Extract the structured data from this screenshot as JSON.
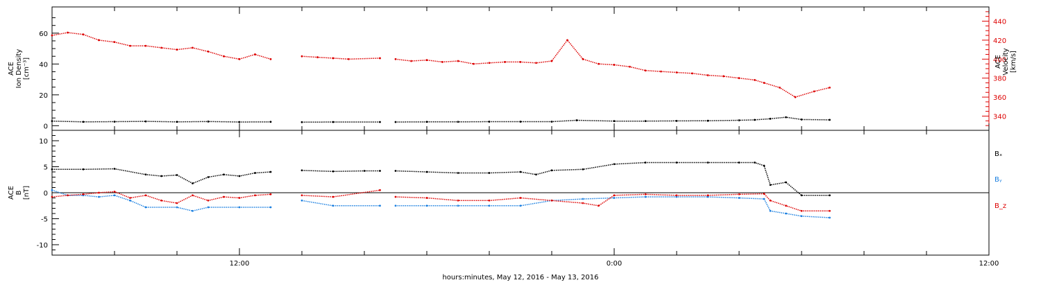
{
  "chart_data": [
    {
      "type": "scatter",
      "panel": "top",
      "ylabel_left": [
        "ACE",
        "Ion Density",
        "[cm⁻³]"
      ],
      "ylabel_right": [
        "ACE",
        "Velocity",
        "[km/s]"
      ],
      "left_axis": {
        "ylim": [
          -3,
          77
        ],
        "ticks": [
          0,
          20,
          40,
          60
        ]
      },
      "right_axis": {
        "ylim": [
          325,
          455
        ],
        "ticks": [
          340,
          360,
          380,
          400,
          420,
          440
        ]
      },
      "series": [
        {
          "label": "Velocity",
          "axis": "right",
          "color": "#dd0000",
          "segments": [
            {
              "x": [
                6.0,
                6.5,
                7.0,
                7.5,
                8.0,
                8.5,
                9.0,
                9.5,
                10.0,
                10.5,
                11.0,
                11.5,
                12.0,
                12.5,
                13.0
              ],
              "y": [
                425,
                428,
                426,
                420,
                418,
                414,
                414,
                412,
                410,
                412,
                408,
                403,
                400,
                405,
                400
              ]
            },
            {
              "x": [
                14.0,
                14.5,
                15.0,
                15.5,
                16.5
              ],
              "y": [
                403,
                402,
                401,
                400,
                401
              ]
            },
            {
              "x": [
                17.0,
                17.5,
                18.0,
                18.5,
                19.0,
                19.5,
                20.0,
                20.5,
                21.0,
                21.5,
                22.0,
                22.5,
                23.0,
                23.5,
                24.0,
                24.5,
                25.0,
                25.5,
                26.0,
                26.5,
                27.0,
                27.5,
                28.0,
                28.5,
                28.8,
                29.3,
                29.8,
                30.4,
                30.9
              ],
              "y": [
                400,
                398,
                399,
                397,
                398,
                395,
                396,
                397,
                397,
                396,
                398,
                420,
                400,
                395,
                394,
                392,
                388,
                387,
                386,
                385,
                383,
                382,
                380,
                378,
                375,
                370,
                360,
                366,
                370
              ]
            }
          ]
        },
        {
          "label": "Ion Density",
          "axis": "left",
          "color": "#000000",
          "segments": [
            {
              "x": [
                6.0,
                7.0,
                8.0,
                9.0,
                10.0,
                11.0,
                12.0,
                13.0
              ],
              "y": [
                3.0,
                2.5,
                2.6,
                2.8,
                2.5,
                2.7,
                2.4,
                2.5
              ]
            },
            {
              "x": [
                14.0,
                15.0,
                16.5
              ],
              "y": [
                2.3,
                2.4,
                2.4
              ]
            },
            {
              "x": [
                17.0,
                18.0,
                19.0,
                20.0,
                21.0,
                22.0,
                22.8,
                24.0,
                25.0,
                26.0,
                27.0,
                28.0,
                28.5,
                29.0,
                29.5,
                30.0,
                30.9
              ],
              "y": [
                2.4,
                2.5,
                2.5,
                2.6,
                2.6,
                2.6,
                3.5,
                3.0,
                3.0,
                3.1,
                3.2,
                3.5,
                3.8,
                4.5,
                5.5,
                4.0,
                3.8
              ]
            }
          ]
        }
      ]
    },
    {
      "type": "line",
      "panel": "bottom",
      "ylabel_left": [
        "ACE",
        "B",
        "[nT]"
      ],
      "ylim": [
        -12,
        12
      ],
      "y_ticks": [
        -10,
        -5,
        0,
        5,
        10
      ],
      "series": [
        {
          "label": "Bₓ",
          "color": "#000000",
          "segments": [
            {
              "x": [
                6.0,
                7.0,
                8.0,
                9.0,
                9.5,
                10.0,
                10.5,
                11.0,
                11.5,
                12.0,
                12.5,
                13.0
              ],
              "y": [
                4.5,
                4.5,
                4.6,
                3.5,
                3.2,
                3.4,
                1.8,
                3.0,
                3.5,
                3.2,
                3.8,
                4.0
              ]
            },
            {
              "x": [
                14.0,
                15.0,
                16.0,
                16.5
              ],
              "y": [
                4.3,
                4.1,
                4.2,
                4.2
              ]
            },
            {
              "x": [
                17.0,
                18.0,
                19.0,
                20.0,
                21.0,
                21.5,
                22.0,
                23.0,
                24.0,
                25.0,
                26.0,
                27.0,
                28.0,
                28.5,
                28.8,
                29.0,
                29.5,
                30.0,
                30.9
              ],
              "y": [
                4.2,
                4.0,
                3.8,
                3.8,
                4.0,
                3.5,
                4.3,
                4.5,
                5.5,
                5.8,
                5.8,
                5.8,
                5.8,
                5.8,
                5.2,
                1.5,
                2.0,
                -0.5,
                -0.5
              ]
            }
          ]
        },
        {
          "label": "Bᵧ",
          "color": "#1a7fe0",
          "segments": [
            {
              "x": [
                6.0,
                6.5,
                7.0,
                7.5,
                8.0,
                8.5,
                9.0,
                10.0,
                10.5,
                11.0,
                12.0,
                13.0
              ],
              "y": [
                0.5,
                -0.5,
                -0.5,
                -0.8,
                -0.5,
                -1.5,
                -2.8,
                -2.8,
                -3.5,
                -2.8,
                -2.8,
                -2.8
              ]
            },
            {
              "x": [
                14.0,
                15.0,
                16.5
              ],
              "y": [
                -1.5,
                -2.5,
                -2.5
              ]
            },
            {
              "x": [
                17.0,
                18.0,
                19.0,
                20.0,
                21.0,
                22.0,
                23.0,
                24.0,
                25.0,
                26.0,
                27.0,
                28.0,
                28.8,
                29.0,
                29.5,
                30.0,
                30.9
              ],
              "y": [
                -2.5,
                -2.5,
                -2.5,
                -2.5,
                -2.5,
                -1.5,
                -1.2,
                -1.0,
                -0.8,
                -0.8,
                -0.8,
                -1.0,
                -1.2,
                -3.5,
                -4.0,
                -4.5,
                -4.8
              ]
            }
          ]
        },
        {
          "label": "B_z",
          "color": "#dd0000",
          "segments": [
            {
              "x": [
                6.0,
                6.5,
                7.0,
                7.5,
                8.0,
                8.5,
                9.0,
                9.5,
                10.0,
                10.5,
                11.0,
                11.5,
                12.0,
                12.5,
                13.0
              ],
              "y": [
                -0.8,
                -0.5,
                -0.3,
                0.0,
                0.2,
                -1.0,
                -0.5,
                -1.5,
                -2.0,
                -0.5,
                -1.5,
                -0.8,
                -1.0,
                -0.5,
                -0.3
              ]
            },
            {
              "x": [
                14.0,
                15.0,
                16.5
              ],
              "y": [
                -0.5,
                -0.8,
                0.5
              ]
            },
            {
              "x": [
                17.0,
                18.0,
                19.0,
                20.0,
                21.0,
                22.0,
                23.0,
                23.5,
                24.0,
                25.0,
                26.0,
                27.0,
                28.0,
                28.8,
                29.0,
                29.5,
                30.0,
                30.9
              ],
              "y": [
                -0.8,
                -1.0,
                -1.5,
                -1.5,
                -1.0,
                -1.5,
                -2.0,
                -2.5,
                -0.5,
                -0.3,
                -0.5,
                -0.5,
                -0.3,
                -0.2,
                -1.5,
                -2.5,
                -3.5,
                -3.5
              ]
            }
          ]
        }
      ]
    }
  ],
  "x_axis": {
    "xlim": [
      6.0,
      36.0
    ],
    "major_ticks": [
      12,
      24,
      36
    ],
    "tick_labels": [
      "12:00",
      "0:00",
      "12:00"
    ],
    "minor_step": 2,
    "xlabel": "hours:minutes, May 12, 2016 - May 13, 2016"
  }
}
